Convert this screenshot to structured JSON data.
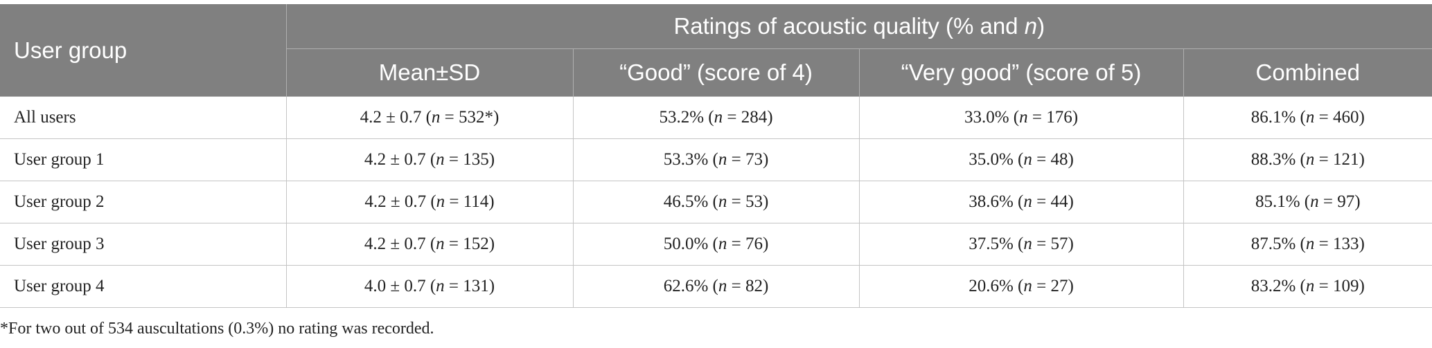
{
  "header": {
    "row_header": "User group",
    "group_title": [
      "Ratings of acoustic quality (% and ",
      "n",
      ")"
    ],
    "columns": [
      "Mean±SD",
      "“Good” (score of 4)",
      "“Very good” (score of 5)",
      "Combined"
    ]
  },
  "table": {
    "rows": [
      {
        "label": "All users",
        "cells": [
          [
            "4.2 ± 0.7 (",
            "n",
            " = 532*)"
          ],
          [
            "53.2% (",
            "n",
            " = 284)"
          ],
          [
            "33.0% (",
            "n",
            " = 176)"
          ],
          [
            "86.1% (",
            "n",
            " = 460)"
          ]
        ]
      },
      {
        "label": "User group 1",
        "cells": [
          [
            "4.2 ± 0.7 (",
            "n",
            " = 135)"
          ],
          [
            "53.3% (",
            "n",
            " = 73)"
          ],
          [
            "35.0% (",
            "n",
            " = 48)"
          ],
          [
            "88.3% (",
            "n",
            " = 121)"
          ]
        ]
      },
      {
        "label": "User group 2",
        "cells": [
          [
            "4.2 ± 0.7 (",
            "n",
            " = 114)"
          ],
          [
            "46.5% (",
            "n",
            " = 53)"
          ],
          [
            "38.6% (",
            "n",
            " = 44)"
          ],
          [
            "85.1% (",
            "n",
            " = 97)"
          ]
        ]
      },
      {
        "label": "User group 3",
        "cells": [
          [
            "4.2 ± 0.7 (",
            "n",
            " = 152)"
          ],
          [
            "50.0% (",
            "n",
            " = 76)"
          ],
          [
            "37.5% (",
            "n",
            " = 57)"
          ],
          [
            "87.5% (",
            "n",
            " = 133)"
          ]
        ]
      },
      {
        "label": "User group 4",
        "cells": [
          [
            "4.0 ± 0.7 (",
            "n",
            " = 131)"
          ],
          [
            "62.6% (",
            "n",
            " = 82)"
          ],
          [
            "20.6% (",
            "n",
            " = 27)"
          ],
          [
            "83.2% (",
            "n",
            " = 109)"
          ]
        ]
      }
    ]
  },
  "footnote": "*For two out of 534 auscultations (0.3%) no rating was recorded."
}
